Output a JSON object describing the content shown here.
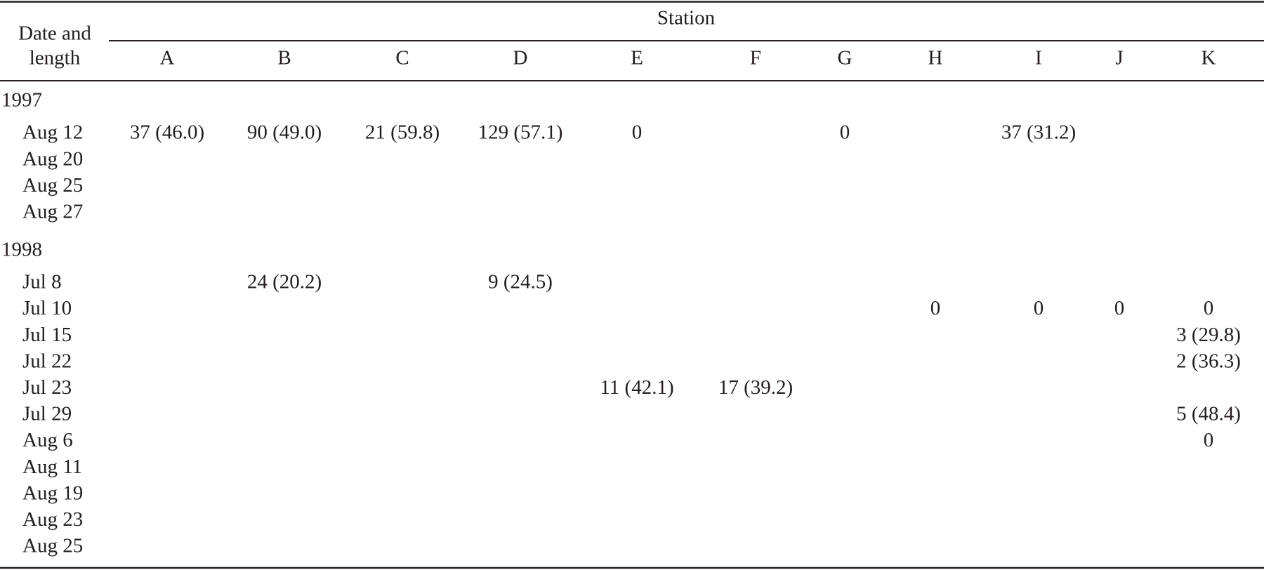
{
  "table": {
    "stub": [
      "Date and",
      "length"
    ],
    "spanner": "Station",
    "columns": [
      "A",
      "B",
      "C",
      "D",
      "E",
      "F",
      "G",
      "H",
      "I",
      "J",
      "K"
    ],
    "groups": [
      {
        "year": "1997",
        "rows": [
          {
            "date": "Aug 12",
            "cells": [
              "37 (46.0)",
              "90 (49.0)",
              "21 (59.8)",
              "129 (57.1)",
              "0",
              null,
              "0",
              null,
              "37 (31.2)",
              null,
              null
            ]
          },
          {
            "date": "Aug 20",
            "cells": [
              null,
              null,
              null,
              null,
              null,
              null,
              null,
              null,
              null,
              null,
              null
            ]
          },
          {
            "date": "Aug 25",
            "cells": [
              null,
              null,
              null,
              null,
              null,
              null,
              null,
              null,
              null,
              null,
              null
            ]
          },
          {
            "date": "Aug 27",
            "cells": [
              null,
              null,
              null,
              null,
              null,
              null,
              null,
              null,
              null,
              null,
              null
            ]
          }
        ]
      },
      {
        "year": "1998",
        "rows": [
          {
            "date": "Jul 8",
            "cells": [
              null,
              "24 (20.2)",
              null,
              "9 (24.5)",
              null,
              null,
              null,
              null,
              null,
              null,
              null
            ]
          },
          {
            "date": "Jul 10",
            "cells": [
              null,
              null,
              null,
              null,
              null,
              null,
              null,
              "0",
              "0",
              "0",
              "0"
            ]
          },
          {
            "date": "Jul 15",
            "cells": [
              null,
              null,
              null,
              null,
              null,
              null,
              null,
              null,
              null,
              null,
              "3 (29.8)"
            ]
          },
          {
            "date": "Jul 22",
            "cells": [
              null,
              null,
              null,
              null,
              null,
              null,
              null,
              null,
              null,
              null,
              "2 (36.3)"
            ]
          },
          {
            "date": "Jul 23",
            "cells": [
              null,
              null,
              null,
              null,
              "11 (42.1)",
              "17 (39.2)",
              null,
              null,
              null,
              null,
              null
            ]
          },
          {
            "date": "Jul 29",
            "cells": [
              null,
              null,
              null,
              null,
              null,
              null,
              null,
              null,
              null,
              null,
              "5 (48.4)"
            ]
          },
          {
            "date": "Aug 6",
            "cells": [
              null,
              null,
              null,
              null,
              null,
              null,
              null,
              null,
              null,
              null,
              "0"
            ]
          },
          {
            "date": "Aug 11",
            "cells": [
              null,
              null,
              null,
              null,
              null,
              null,
              null,
              null,
              null,
              null,
              null
            ]
          },
          {
            "date": "Aug 19",
            "cells": [
              null,
              null,
              null,
              null,
              null,
              null,
              null,
              null,
              null,
              null,
              null
            ]
          },
          {
            "date": "Aug 23",
            "cells": [
              null,
              null,
              null,
              null,
              null,
              null,
              null,
              null,
              null,
              null,
              null
            ]
          },
          {
            "date": "Aug 25",
            "cells": [
              null,
              null,
              null,
              null,
              null,
              null,
              null,
              null,
              null,
              null,
              null
            ]
          }
        ]
      }
    ]
  }
}
